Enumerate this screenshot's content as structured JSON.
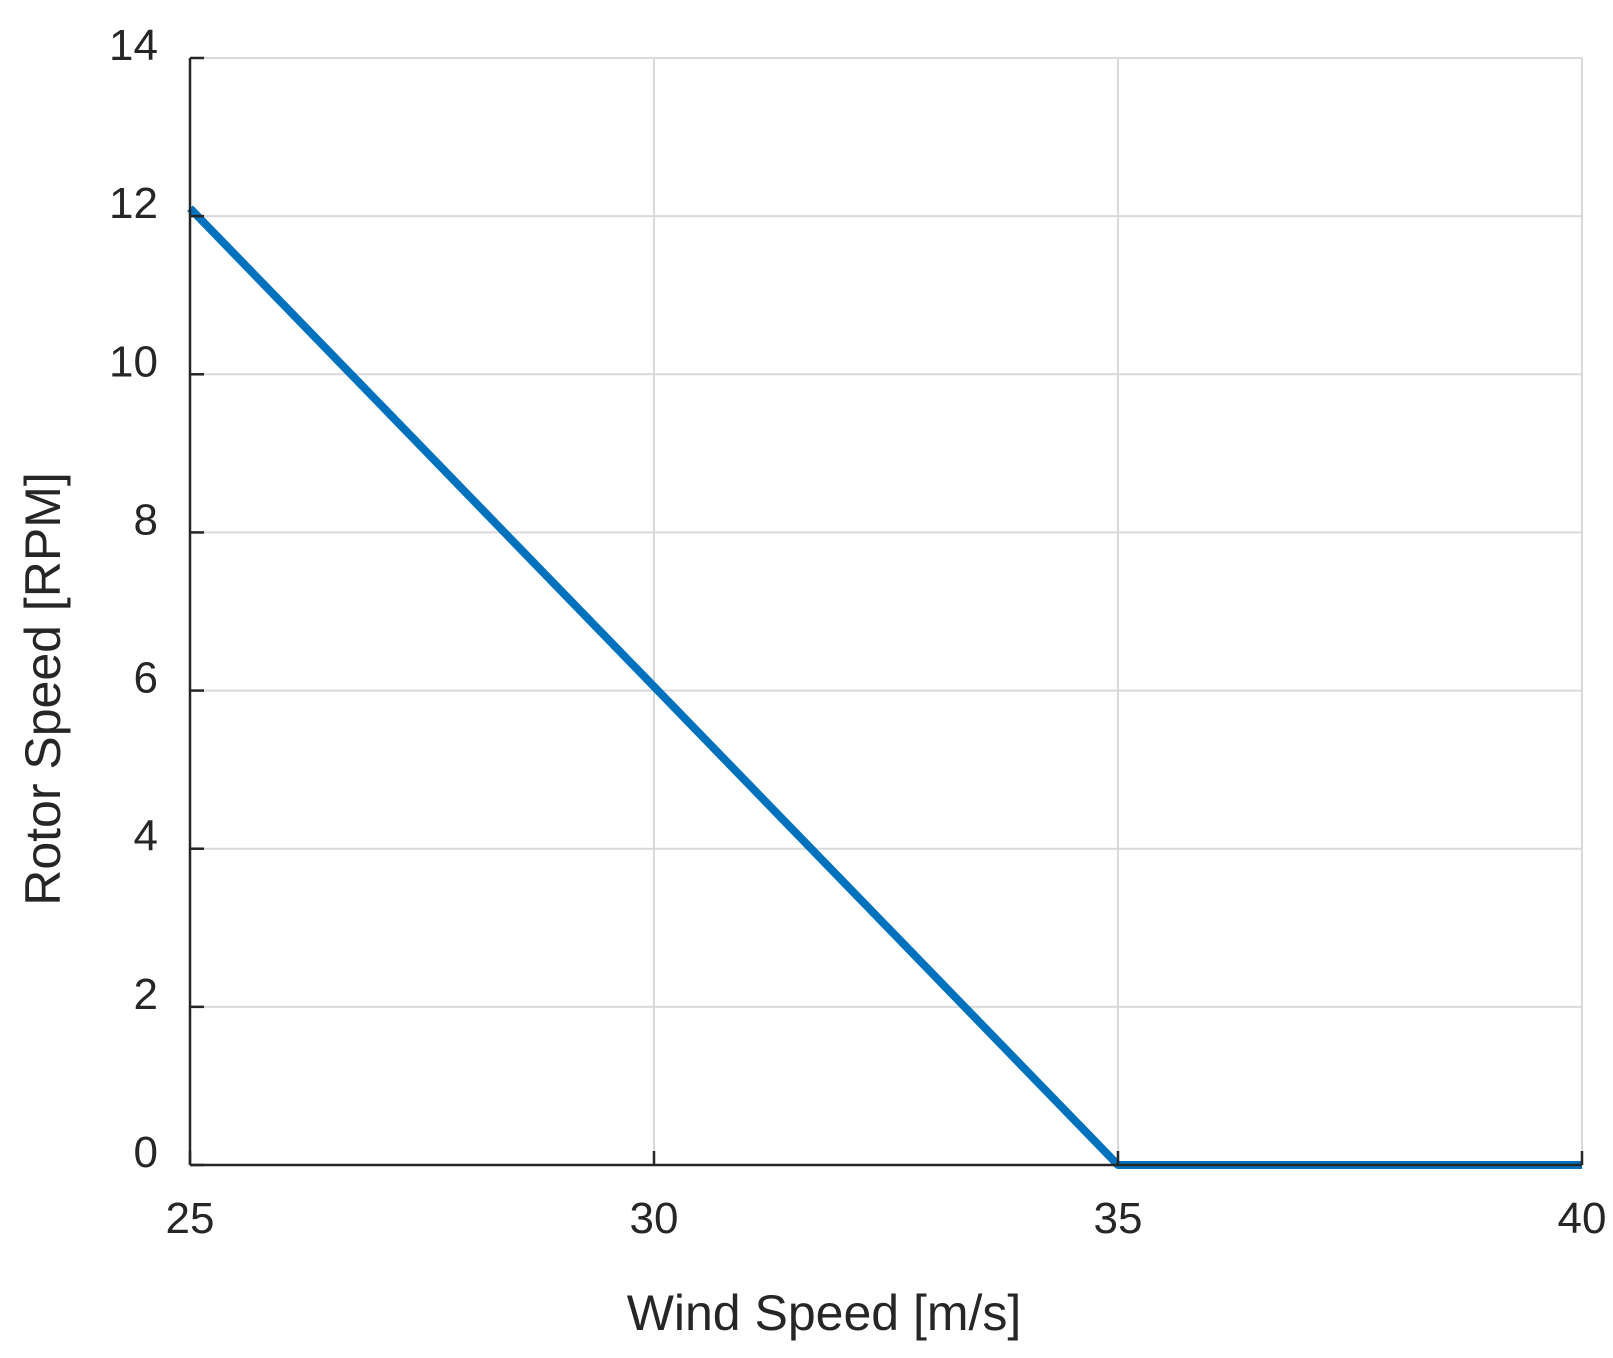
{
  "chart_data": {
    "type": "line",
    "title": "",
    "xlabel": "Wind Speed [m/s]",
    "ylabel": "Rotor Speed [RPM]",
    "xlim": [
      25,
      40
    ],
    "ylim": [
      0,
      14
    ],
    "xticks": [
      25,
      30,
      35,
      40
    ],
    "yticks": [
      0,
      2,
      4,
      6,
      8,
      10,
      12,
      14
    ],
    "grid": true,
    "legend": "none",
    "series": [
      {
        "color": "#0072bd",
        "x": [
          25,
          35,
          40
        ],
        "y": [
          12.1,
          0,
          0
        ]
      }
    ]
  }
}
